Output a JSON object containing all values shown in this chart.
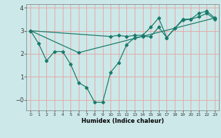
{
  "xlabel": "Humidex (Indice chaleur)",
  "bg_color": "#cce8e8",
  "grid_color": "#e8a0a0",
  "line_color": "#1a7a6a",
  "xlim": [
    -0.5,
    23.5
  ],
  "ylim": [
    -0.45,
    4.15
  ],
  "yticks": [
    0,
    1,
    2,
    3,
    4
  ],
  "ytick_labels": [
    "−0",
    "1",
    "2",
    "3",
    "4"
  ],
  "xticks": [
    0,
    1,
    2,
    3,
    4,
    5,
    6,
    7,
    8,
    9,
    10,
    11,
    12,
    13,
    14,
    15,
    16,
    17,
    18,
    19,
    20,
    21,
    22,
    23
  ],
  "line1_x": [
    0,
    1,
    2,
    3,
    4,
    5,
    6,
    7,
    8,
    9,
    10,
    11,
    12,
    13,
    14,
    15,
    16,
    17,
    18,
    19,
    20,
    21,
    22,
    23
  ],
  "line1_y": [
    3.0,
    2.45,
    1.7,
    2.1,
    2.1,
    1.55,
    0.75,
    0.55,
    -0.1,
    -0.1,
    1.2,
    1.62,
    2.4,
    2.7,
    2.75,
    2.75,
    3.15,
    2.7,
    3.1,
    3.5,
    3.5,
    3.6,
    3.75,
    3.5
  ],
  "line2_x": [
    0,
    6,
    23
  ],
  "line2_y": [
    3.0,
    2.05,
    3.55
  ],
  "line3_x": [
    0,
    10,
    11,
    12,
    13,
    14,
    15,
    16,
    17,
    18,
    19,
    20,
    21,
    22,
    23
  ],
  "line3_y": [
    3.0,
    2.75,
    2.8,
    2.75,
    2.8,
    2.8,
    3.15,
    3.55,
    2.7,
    3.1,
    3.45,
    3.5,
    3.75,
    3.85,
    3.55
  ]
}
